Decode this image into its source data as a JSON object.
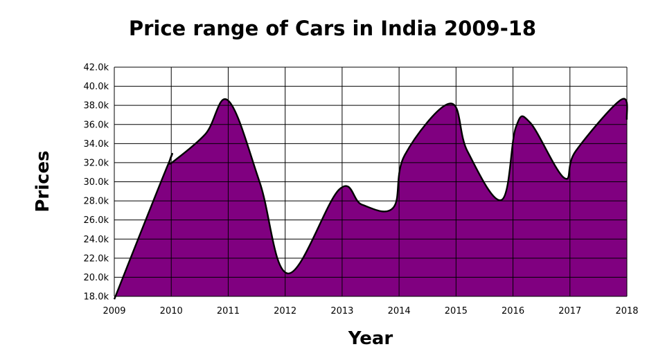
{
  "chart_data": {
    "type": "area",
    "title": "Price range of Cars in India 2009-18",
    "xlabel": "Year",
    "ylabel": "Prices",
    "x_ticks": [
      "2009",
      "2010",
      "2011",
      "2012",
      "2013",
      "2014",
      "2015",
      "2016",
      "2017",
      "2018"
    ],
    "y_ticks": [
      "18.0k",
      "20.0k",
      "22.0k",
      "24.0k",
      "26.0k",
      "28.0k",
      "30.0k",
      "32.0k",
      "34.0k",
      "36.0k",
      "38.0k",
      "40.0k",
      "42.0k"
    ],
    "xlim": [
      2009,
      2018
    ],
    "ylim": [
      18000,
      42000
    ],
    "grid": true,
    "fill_color": "#800080",
    "line_color": "#000000",
    "points": [
      {
        "x": 2009.0,
        "y": 17700
      },
      {
        "x": 2009.95,
        "y": 31900
      },
      {
        "x": 2010.0,
        "y": 31950
      },
      {
        "x": 2010.6,
        "y": 35000
      },
      {
        "x": 2011.0,
        "y": 38500
      },
      {
        "x": 2011.55,
        "y": 30000
      },
      {
        "x": 2012.05,
        "y": 20400
      },
      {
        "x": 2012.95,
        "y": 29200
      },
      {
        "x": 2013.35,
        "y": 27600
      },
      {
        "x": 2013.9,
        "y": 27300
      },
      {
        "x": 2014.1,
        "y": 32800
      },
      {
        "x": 2014.9,
        "y": 38200
      },
      {
        "x": 2015.2,
        "y": 33200
      },
      {
        "x": 2015.8,
        "y": 28100
      },
      {
        "x": 2016.05,
        "y": 35700
      },
      {
        "x": 2016.3,
        "y": 36200
      },
      {
        "x": 2016.9,
        "y": 30400
      },
      {
        "x": 2017.1,
        "y": 33200
      },
      {
        "x": 2017.9,
        "y": 38600
      },
      {
        "x": 2018.0,
        "y": 36500
      }
    ]
  }
}
